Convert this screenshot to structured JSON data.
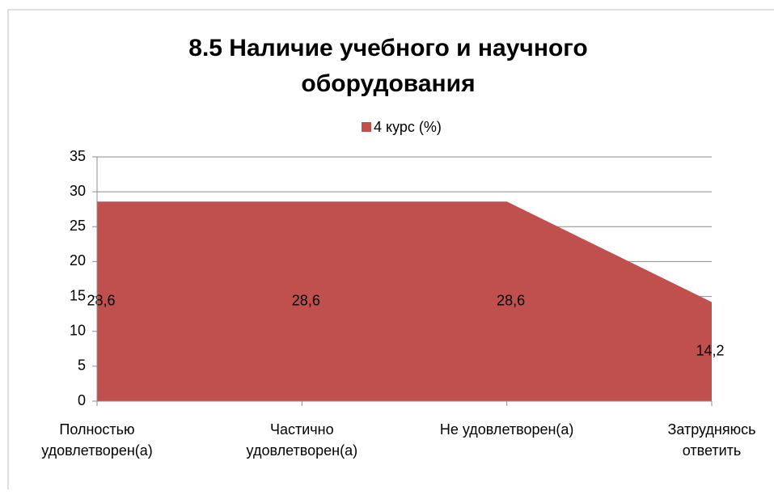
{
  "chart_data": {
    "type": "area",
    "title": "8.5 Наличие учебного и научного оборудования",
    "categories": [
      "Полностью удовлетворен(а)",
      "Частично удовлетворен(а)",
      "Не удовлетворен(а)",
      "Затрудняюсь ответить"
    ],
    "series": [
      {
        "name": "4 курс (%)",
        "color": "#c0504d",
        "values": [
          28.6,
          28.6,
          28.6,
          14.2
        ],
        "value_labels": [
          "28,6",
          "28,6",
          "28,6",
          "14,2"
        ]
      }
    ],
    "ylim": [
      0,
      35
    ],
    "yticks": [
      0,
      5,
      10,
      15,
      20,
      25,
      30,
      35
    ],
    "grid": true,
    "legend": "top"
  }
}
